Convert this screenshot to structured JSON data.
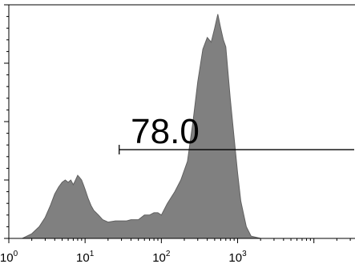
{
  "chart_data": {
    "type": "area",
    "x_scale": "log",
    "xlim": [
      1,
      40000
    ],
    "ylim": [
      0,
      1.0
    ],
    "x_ticks": [
      {
        "value": 1,
        "label_base": "10",
        "label_exp": "0"
      },
      {
        "value": 10,
        "label_base": "10",
        "label_exp": "1"
      },
      {
        "value": 100,
        "label_base": "10",
        "label_exp": "2"
      },
      {
        "value": 1000,
        "label_base": "10",
        "label_exp": "3"
      }
    ],
    "y_ticks": [
      0,
      0.25,
      0.5,
      0.75,
      1.0
    ],
    "grid": false,
    "fill_color": "#808080",
    "outline_color": "#606060",
    "series": [
      {
        "x": [
          1.5,
          2.0,
          2.5,
          3.0,
          3.5,
          4.0,
          4.5,
          5.0,
          5.5,
          6.0,
          6.5,
          7.0,
          7.5,
          8.0,
          8.5,
          9.0,
          9.5,
          10,
          11,
          12,
          13,
          15,
          17,
          20,
          25,
          30,
          35,
          40,
          50,
          60,
          70,
          80,
          90,
          100,
          120,
          150,
          180,
          220,
          260,
          300,
          350,
          400,
          450,
          500,
          550,
          600,
          650,
          700,
          800,
          900,
          1000,
          1100,
          1300,
          1500,
          2000
        ],
        "y": [
          0.0,
          0.02,
          0.05,
          0.09,
          0.14,
          0.19,
          0.22,
          0.24,
          0.25,
          0.24,
          0.25,
          0.23,
          0.25,
          0.27,
          0.26,
          0.25,
          0.23,
          0.21,
          0.17,
          0.14,
          0.12,
          0.1,
          0.08,
          0.07,
          0.075,
          0.075,
          0.075,
          0.08,
          0.08,
          0.1,
          0.1,
          0.11,
          0.11,
          0.1,
          0.15,
          0.2,
          0.25,
          0.33,
          0.5,
          0.67,
          0.81,
          0.86,
          0.84,
          0.9,
          0.96,
          0.9,
          0.85,
          0.82,
          0.6,
          0.43,
          0.28,
          0.16,
          0.05,
          0.01,
          0.0
        ]
      }
    ],
    "gate": {
      "label": "78.0",
      "x_start": 28,
      "x_end": 40000,
      "y": 0.38
    }
  }
}
